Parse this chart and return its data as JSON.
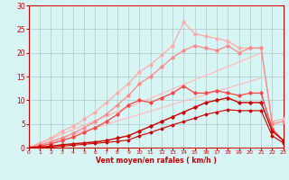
{
  "x": [
    0,
    1,
    2,
    3,
    4,
    5,
    6,
    7,
    8,
    9,
    10,
    11,
    12,
    13,
    14,
    15,
    16,
    17,
    18,
    19,
    20,
    21,
    22,
    23
  ],
  "line_lightest": [
    0,
    1.0,
    2.0,
    3.5,
    4.5,
    6.0,
    7.5,
    9.5,
    11.5,
    13.5,
    16.0,
    17.5,
    19.5,
    21.5,
    26.5,
    24.0,
    23.5,
    23.0,
    22.5,
    21.0,
    21.0,
    21.0,
    5.5,
    6.0
  ],
  "line_light2": [
    0,
    0.5,
    1.2,
    2.0,
    3.0,
    4.2,
    5.5,
    7.0,
    9.0,
    11.0,
    13.5,
    15.0,
    17.0,
    19.0,
    20.5,
    21.5,
    21.0,
    20.5,
    21.5,
    20.0,
    21.0,
    21.0,
    5.0,
    5.5
  ],
  "line_medium": [
    0,
    0.3,
    0.8,
    1.5,
    2.2,
    3.2,
    4.2,
    5.5,
    7.0,
    9.0,
    10.0,
    9.5,
    10.5,
    11.5,
    13.0,
    11.5,
    11.5,
    12.0,
    11.5,
    11.0,
    11.5,
    11.5,
    4.0,
    1.5
  ],
  "line_straight1": [
    0,
    0.95,
    1.9,
    2.85,
    3.8,
    4.75,
    5.7,
    6.65,
    7.6,
    8.55,
    9.5,
    10.45,
    11.4,
    12.35,
    13.3,
    14.25,
    15.2,
    16.15,
    17.1,
    18.05,
    19.0,
    20.0,
    21.0,
    0
  ],
  "line_straight2": [
    0,
    0.7,
    1.4,
    2.1,
    2.8,
    3.5,
    4.2,
    4.9,
    5.6,
    6.3,
    7.0,
    7.7,
    8.4,
    9.1,
    9.8,
    10.5,
    11.2,
    11.9,
    12.6,
    13.3,
    14.0,
    14.7,
    0,
    0
  ],
  "line_dark1": [
    0,
    0.1,
    0.3,
    0.6,
    0.8,
    1.0,
    1.2,
    1.5,
    2.0,
    2.5,
    3.5,
    4.5,
    5.5,
    6.5,
    7.5,
    8.5,
    9.5,
    10.0,
    10.5,
    9.5,
    9.5,
    9.5,
    3.5,
    1.5
  ],
  "line_dark2": [
    0,
    0.0,
    0.1,
    0.3,
    0.5,
    0.7,
    0.9,
    1.1,
    1.3,
    1.6,
    2.5,
    3.2,
    4.0,
    4.8,
    5.5,
    6.2,
    7.0,
    7.5,
    8.0,
    7.8,
    7.8,
    7.8,
    2.5,
    1.0
  ],
  "bg_color": "#d8f5f5",
  "grid_color": "#b0c8c8",
  "col_lightest": "#ffaaaa",
  "col_light2": "#ff8888",
  "col_medium": "#ff4444",
  "col_straight": "#ffbbbb",
  "col_dark": "#cc0000",
  "xlabel": "Vent moyen/en rafales ( km/h )",
  "ylim": [
    0,
    30
  ],
  "xlim": [
    0,
    23
  ],
  "yticks": [
    0,
    5,
    10,
    15,
    20,
    25,
    30
  ],
  "xticks": [
    0,
    1,
    2,
    3,
    4,
    5,
    6,
    7,
    8,
    9,
    10,
    11,
    12,
    13,
    14,
    15,
    16,
    17,
    18,
    19,
    20,
    21,
    22,
    23
  ]
}
